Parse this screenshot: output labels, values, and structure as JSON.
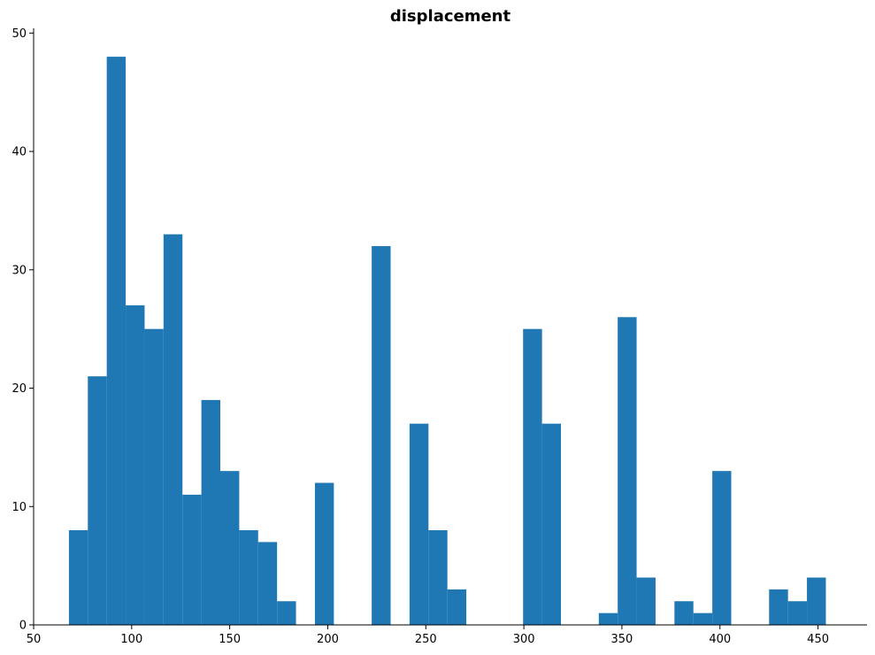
{
  "chart_data": {
    "type": "bar",
    "title": "displacement",
    "xlabel": "",
    "ylabel": "",
    "xlim": [
      50,
      475
    ],
    "ylim": [
      0,
      50.4
    ],
    "grid": false,
    "bin_width": 9.65,
    "bins_start": 68,
    "bar_color": "#1f77b4",
    "counts": [
      8,
      21,
      48,
      27,
      25,
      33,
      11,
      19,
      13,
      8,
      7,
      2,
      0,
      12,
      0,
      0,
      32,
      0,
      17,
      8,
      3,
      0,
      0,
      0,
      25,
      17,
      0,
      0,
      1,
      26,
      4,
      0,
      2,
      1,
      13,
      0,
      0,
      3,
      2,
      4
    ],
    "x_ticks": [
      "50",
      "100",
      "150",
      "200",
      "250",
      "300",
      "350",
      "400",
      "450"
    ],
    "y_ticks": [
      "0",
      "10",
      "20",
      "30",
      "40",
      "50"
    ]
  }
}
